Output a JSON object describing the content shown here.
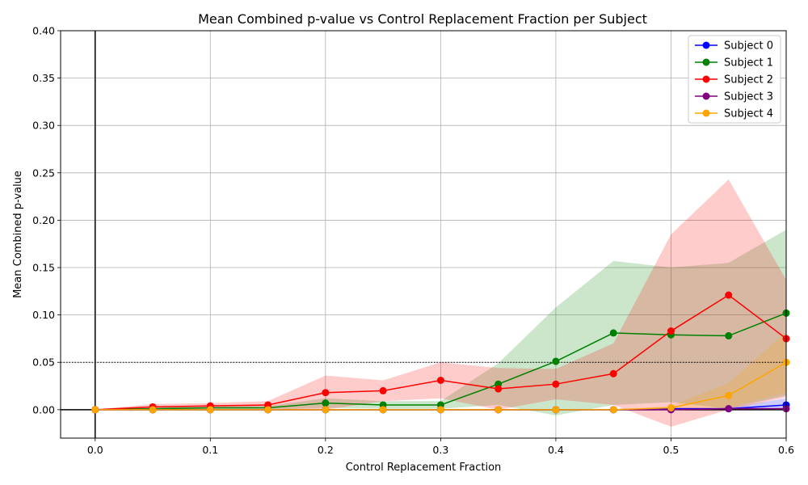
{
  "chart_data": {
    "type": "line",
    "title": "Mean Combined p-value vs Control Replacement Fraction per Subject",
    "xlabel": "Control Replacement Fraction",
    "ylabel": "Mean Combined p-value",
    "xlim": [
      -0.03,
      0.6
    ],
    "ylim": [
      -0.03,
      0.4
    ],
    "xticks": [
      0.0,
      0.1,
      0.2,
      0.3,
      0.4,
      0.5,
      0.6
    ],
    "xtick_labels": [
      "0.0",
      "0.1",
      "0.2",
      "0.3",
      "0.4",
      "0.5",
      "0.6"
    ],
    "yticks": [
      0.0,
      0.05,
      0.1,
      0.15,
      0.2,
      0.25,
      0.3,
      0.35,
      0.4
    ],
    "ytick_labels": [
      "0.00",
      "0.05",
      "0.10",
      "0.15",
      "0.20",
      "0.25",
      "0.30",
      "0.35",
      "0.40"
    ],
    "grid": true,
    "legend_position": "top-right",
    "reference_line_y": 0.05,
    "x": [
      0.0,
      0.05,
      0.1,
      0.15,
      0.2,
      0.25,
      0.3,
      0.35,
      0.4,
      0.45,
      0.5,
      0.55,
      0.6
    ],
    "series": [
      {
        "name": "Subject 0",
        "color": "#0000ff",
        "values": [
          0.0,
          0.0,
          0.0,
          0.0,
          0.0,
          0.0,
          0.0,
          0.0,
          0.0,
          0.0,
          0.001,
          0.001,
          0.005
        ],
        "lower": [
          0.0,
          0.0,
          0.0,
          0.0,
          0.0,
          0.0,
          0.0,
          0.0,
          0.0,
          0.0,
          0.0,
          0.0,
          0.0
        ],
        "upper": [
          0.0,
          0.0,
          0.0,
          0.0,
          0.0,
          0.0,
          0.0,
          0.0,
          0.0,
          0.0,
          0.002,
          0.002,
          0.012
        ]
      },
      {
        "name": "Subject 1",
        "color": "#008000",
        "values": [
          0.0,
          0.001,
          0.002,
          0.002,
          0.007,
          0.005,
          0.005,
          0.027,
          0.051,
          0.081,
          0.079,
          0.078,
          0.102
        ],
        "lower": [
          0.0,
          0.0,
          0.0,
          0.0,
          0.002,
          0.001,
          0.001,
          0.005,
          -0.006,
          0.005,
          0.008,
          0.001,
          0.015
        ],
        "upper": [
          0.0,
          0.002,
          0.004,
          0.004,
          0.012,
          0.009,
          0.009,
          0.049,
          0.108,
          0.157,
          0.15,
          0.155,
          0.19
        ]
      },
      {
        "name": "Subject 2",
        "color": "#ff0000",
        "values": [
          0.0,
          0.003,
          0.004,
          0.005,
          0.018,
          0.02,
          0.031,
          0.022,
          0.027,
          0.038,
          0.083,
          0.121,
          0.075
        ],
        "lower": [
          0.0,
          0.0,
          0.001,
          0.001,
          0.0,
          0.009,
          0.012,
          0.0,
          0.011,
          0.005,
          -0.018,
          0.0,
          0.013
        ],
        "upper": [
          0.0,
          0.006,
          0.007,
          0.009,
          0.036,
          0.031,
          0.05,
          0.044,
          0.043,
          0.07,
          0.185,
          0.243,
          0.137
        ]
      },
      {
        "name": "Subject 3",
        "color": "#800080",
        "values": [
          0.0,
          0.0,
          0.0,
          0.0,
          0.0,
          0.0,
          0.0,
          0.0,
          0.0,
          0.0,
          0.0,
          0.001,
          0.001
        ],
        "lower": [
          0.0,
          0.0,
          0.0,
          0.0,
          0.0,
          0.0,
          0.0,
          0.0,
          0.0,
          0.0,
          0.0,
          0.0,
          0.0
        ],
        "upper": [
          0.0,
          0.0,
          0.0,
          0.0,
          0.0,
          0.0,
          0.0,
          0.0,
          0.0,
          0.0,
          0.0,
          0.002,
          0.002
        ]
      },
      {
        "name": "Subject 4",
        "color": "#ffa500",
        "values": [
          0.0,
          0.0,
          0.0,
          0.0,
          0.0,
          0.0,
          0.0,
          0.0,
          0.0,
          0.0,
          0.002,
          0.015,
          0.05
        ],
        "lower": [
          0.0,
          0.0,
          0.0,
          0.0,
          0.0,
          0.0,
          0.0,
          0.0,
          0.0,
          0.0,
          0.0,
          0.002,
          0.018
        ],
        "upper": [
          0.0,
          0.0,
          0.0,
          0.0,
          0.0,
          0.0,
          0.0,
          0.0,
          0.0,
          0.0,
          0.004,
          0.028,
          0.082
        ]
      }
    ]
  }
}
